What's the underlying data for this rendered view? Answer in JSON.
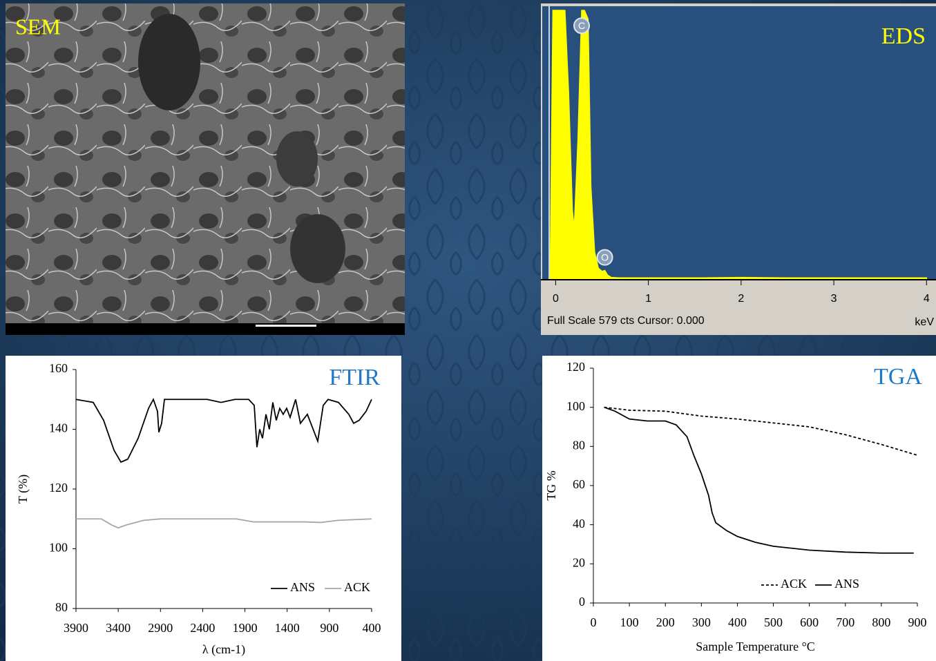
{
  "sem": {
    "label": "SEM"
  },
  "chart_data": [
    {
      "type": "area",
      "label": "EDS",
      "label_color": "#ffff00",
      "footer": "Full Scale 579 cts Cursor: 0.000",
      "xlabel": "keV",
      "xlim": [
        -0.1,
        4.05
      ],
      "ylim": [
        0,
        579
      ],
      "xticks": [
        0,
        1,
        2,
        3,
        4
      ],
      "x": [
        -0.06,
        -0.03,
        0.0,
        0.05,
        0.1,
        0.14,
        0.18,
        0.2,
        0.24,
        0.28,
        0.31,
        0.35,
        0.38,
        0.42,
        0.46,
        0.5,
        0.53,
        0.56,
        0.6,
        0.7,
        1,
        1.5,
        2,
        2.5,
        3,
        3.5,
        4
      ],
      "values": [
        0,
        579,
        579,
        579,
        579,
        400,
        150,
        110,
        300,
        579,
        579,
        560,
        200,
        60,
        25,
        18,
        20,
        10,
        5,
        4,
        4,
        4,
        5,
        4,
        4,
        4,
        4
      ],
      "color": "#ffff00",
      "peak_labels": [
        {
          "label": "C",
          "x": 0.28,
          "y": 546
        },
        {
          "label": "O",
          "x": 0.53,
          "y": 48
        }
      ]
    },
    {
      "type": "line",
      "label": "FTIR",
      "label_color": "#1f78c8",
      "xlabel": "λ (cm-1)",
      "ylabel": "T (%)",
      "xlim": [
        3900,
        400
      ],
      "ylim": [
        80,
        160
      ],
      "xticks": [
        3900,
        3400,
        2900,
        2400,
        1900,
        1400,
        900,
        400
      ],
      "yticks": [
        80,
        100,
        120,
        140,
        160
      ],
      "legend": "lower right",
      "series": [
        {
          "name": "ANS",
          "color": "#000000",
          "dashed": false,
          "x": [
            3900,
            3696,
            3573,
            3450,
            3368,
            3287,
            3164,
            3041,
            2984,
            2935,
            2919,
            2886,
            2853,
            2755,
            2346,
            2183,
            2019,
            1856,
            1790,
            1758,
            1725,
            1692,
            1651,
            1611,
            1570,
            1529,
            1488,
            1447,
            1406,
            1365,
            1300,
            1243,
            1161,
            1079,
            1038,
            973,
            916,
            793,
            670,
            613,
            548,
            466,
            400
          ],
          "values": [
            150,
            149,
            143,
            133,
            129,
            130,
            137,
            147,
            150,
            146,
            139,
            142,
            150,
            150,
            150,
            149,
            150,
            150,
            148,
            134,
            140,
            137,
            145,
            140,
            149,
            143,
            147,
            145,
            147,
            144,
            150,
            142,
            145,
            139,
            136,
            148,
            150,
            149,
            145,
            142,
            143,
            146,
            150
          ]
        },
        {
          "name": "ACK",
          "color": "#a6a6a6",
          "dashed": false,
          "x": [
            3900,
            3600,
            3480,
            3400,
            3300,
            3100,
            2900,
            2000,
            1800,
            1200,
            1000,
            800,
            400
          ],
          "values": [
            110,
            110,
            108,
            107,
            108,
            109.5,
            110,
            110,
            109,
            109,
            108.8,
            109.5,
            110
          ]
        }
      ]
    },
    {
      "type": "line",
      "label": "TGA",
      "label_color": "#1f78c8",
      "xlabel": "Sample Temperature °C",
      "ylabel": "TG %",
      "xlim": [
        0,
        900
      ],
      "ylim": [
        0,
        120
      ],
      "xticks": [
        0,
        100,
        200,
        300,
        400,
        500,
        600,
        700,
        800,
        900
      ],
      "yticks": [
        0,
        20,
        40,
        60,
        80,
        100,
        120
      ],
      "legend": "lower right",
      "series": [
        {
          "name": "ACK",
          "color": "#000000",
          "dashed": true,
          "x": [
            30,
            100,
            200,
            300,
            400,
            500,
            600,
            700,
            800,
            900
          ],
          "values": [
            100,
            98.5,
            98,
            95.5,
            94,
            92,
            90,
            86,
            81,
            75.5
          ]
        },
        {
          "name": "ANS",
          "color": "#000000",
          "dashed": false,
          "x": [
            30,
            60,
            100,
            150,
            200,
            230,
            260,
            280,
            300,
            320,
            330,
            340,
            370,
            400,
            450,
            500,
            600,
            700,
            800,
            890
          ],
          "values": [
            100,
            98,
            94,
            93,
            93,
            91,
            85,
            75,
            66,
            55,
            46,
            41,
            37,
            34,
            31,
            29,
            27,
            26,
            25.5,
            25.5
          ]
        }
      ]
    }
  ]
}
